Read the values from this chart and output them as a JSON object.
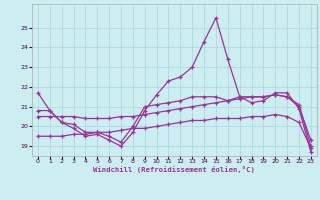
{
  "xlabel": "Windchill (Refroidissement éolien,°C)",
  "bg_color": "#cceef0",
  "grid_color": "#aad4dc",
  "line_color": "#993399",
  "xlim": [
    -0.5,
    23.5
  ],
  "ylim": [
    18.5,
    26.2
  ],
  "xticks": [
    0,
    1,
    2,
    3,
    4,
    5,
    6,
    7,
    8,
    9,
    10,
    11,
    12,
    13,
    14,
    15,
    16,
    17,
    18,
    19,
    20,
    21,
    22,
    23
  ],
  "yticks": [
    19,
    20,
    21,
    22,
    23,
    24,
    25
  ],
  "line1_x": [
    0,
    1,
    2,
    3,
    4,
    5,
    6,
    7,
    8,
    9,
    10,
    11,
    12,
    13,
    14,
    15,
    16,
    17,
    18,
    19,
    20,
    21,
    22,
    23
  ],
  "line1_y": [
    21.7,
    20.8,
    20.2,
    19.9,
    19.5,
    19.6,
    19.3,
    19.0,
    19.7,
    20.8,
    21.6,
    22.3,
    22.5,
    23.0,
    24.3,
    25.5,
    23.4,
    21.5,
    21.2,
    21.3,
    21.7,
    21.7,
    20.9,
    18.7
  ],
  "line2_x": [
    0,
    1,
    2,
    3,
    4,
    5,
    6,
    7,
    8,
    9,
    10,
    11,
    12,
    13,
    14,
    15,
    16,
    17,
    18,
    19,
    20,
    21,
    22,
    23
  ],
  "line2_y": [
    20.8,
    20.8,
    20.2,
    20.1,
    19.7,
    19.7,
    19.5,
    19.2,
    20.0,
    21.0,
    21.1,
    21.2,
    21.3,
    21.5,
    21.5,
    21.5,
    21.3,
    21.5,
    21.5,
    21.5,
    21.6,
    21.5,
    21.0,
    19.3
  ],
  "line3_x": [
    0,
    1,
    2,
    3,
    4,
    5,
    6,
    7,
    8,
    9,
    10,
    11,
    12,
    13,
    14,
    15,
    16,
    17,
    18,
    19,
    20,
    21,
    22,
    23
  ],
  "line3_y": [
    20.5,
    20.5,
    20.5,
    20.5,
    20.4,
    20.4,
    20.4,
    20.5,
    20.5,
    20.6,
    20.7,
    20.8,
    20.9,
    21.0,
    21.1,
    21.2,
    21.3,
    21.4,
    21.5,
    21.5,
    21.6,
    21.5,
    21.1,
    19.0
  ],
  "line4_x": [
    0,
    1,
    2,
    3,
    4,
    5,
    6,
    7,
    8,
    9,
    10,
    11,
    12,
    13,
    14,
    15,
    16,
    17,
    18,
    19,
    20,
    21,
    22,
    23
  ],
  "line4_y": [
    19.5,
    19.5,
    19.5,
    19.6,
    19.6,
    19.7,
    19.7,
    19.8,
    19.9,
    19.9,
    20.0,
    20.1,
    20.2,
    20.3,
    20.3,
    20.4,
    20.4,
    20.4,
    20.5,
    20.5,
    20.6,
    20.5,
    20.2,
    18.9
  ]
}
